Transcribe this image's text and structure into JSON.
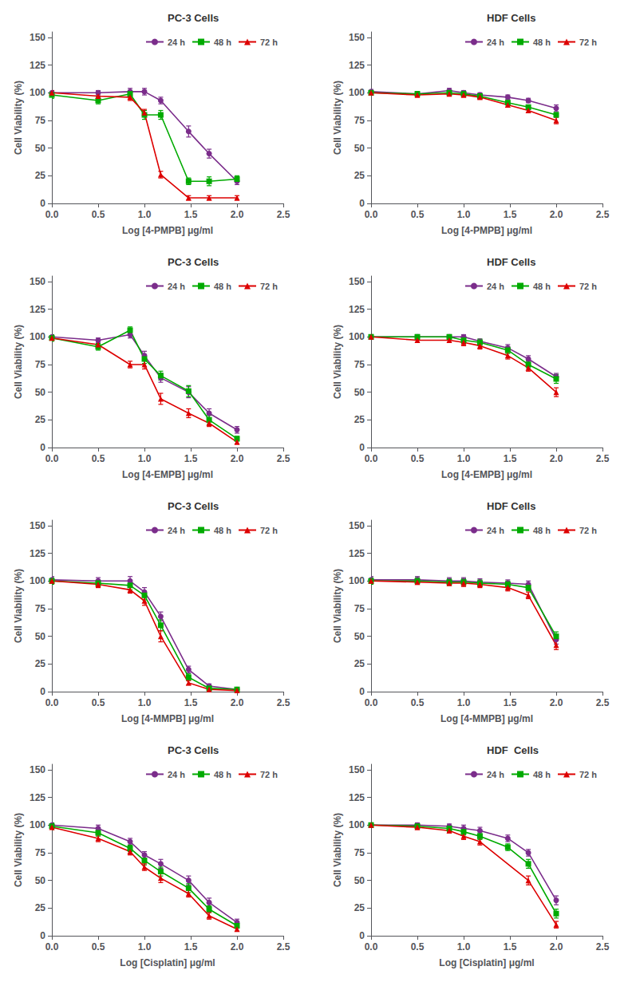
{
  "chart_data": [
    {
      "type": "line",
      "title": "PC-3 Cells",
      "xlabel": "Log [4-PMPB] μg/ml",
      "ylabel": "Cell Viability (%)",
      "xlim": [
        0.0,
        2.5
      ],
      "xticks": [
        {
          "value": 0.0,
          "label": "0.0"
        },
        0.5,
        {
          "value": 1.0,
          "label": "1.0"
        },
        1.5,
        {
          "value": 2.0,
          "label": "2.0"
        },
        2.5
      ],
      "ylim": [
        0,
        155
      ],
      "yticks": [
        0,
        25,
        50,
        75,
        100,
        125,
        150
      ],
      "legend": "upper right",
      "grid": false,
      "series": [
        {
          "name": "24 h",
          "color": "#7B2D8B",
          "marker": "circle",
          "x": [
            0.0,
            0.5,
            0.845,
            1.0,
            1.176,
            1.477,
            1.699,
            2.0
          ],
          "values": [
            100,
            100,
            101,
            101,
            93,
            65,
            45,
            20
          ],
          "yerr": [
            2,
            2,
            3,
            3,
            3,
            5,
            4,
            3
          ]
        },
        {
          "name": "48 h",
          "color": "#00AA00",
          "marker": "square",
          "x": [
            0.0,
            0.5,
            0.845,
            1.0,
            1.176,
            1.477,
            1.699,
            2.0
          ],
          "values": [
            98,
            93,
            99,
            80,
            80,
            20,
            20,
            22
          ],
          "yerr": [
            3,
            3,
            3,
            4,
            4,
            3,
            4,
            3
          ]
        },
        {
          "name": "72 h",
          "color": "#DD0000",
          "marker": "triangle",
          "x": [
            0.0,
            0.5,
            0.845,
            1.0,
            1.176,
            1.477,
            1.699,
            2.0
          ],
          "values": [
            100,
            97,
            96,
            82,
            26,
            5,
            5,
            5
          ],
          "yerr": [
            2,
            2,
            3,
            3,
            3,
            2,
            2,
            2
          ]
        }
      ]
    },
    {
      "type": "line",
      "title": "HDF Cells",
      "xlabel": "Log [4-PMPB] μg/ml",
      "ylabel": "Cell Viability (%)",
      "xlim": [
        0.0,
        2.5
      ],
      "xticks": [
        {
          "value": 0.0,
          "label": "0.0"
        },
        0.5,
        {
          "value": 1.0,
          "label": "1.0"
        },
        1.5,
        {
          "value": 2.0,
          "label": "2.0"
        },
        2.5
      ],
      "ylim": [
        0,
        155
      ],
      "yticks": [
        0,
        25,
        50,
        75,
        100,
        125,
        150
      ],
      "legend": "upper right",
      "grid": false,
      "series": [
        {
          "name": "24 h",
          "color": "#7B2D8B",
          "marker": "circle",
          "x": [
            0.0,
            0.5,
            0.845,
            1.0,
            1.176,
            1.477,
            1.699,
            2.0
          ],
          "values": [
            101,
            99,
            102,
            100,
            98,
            96,
            93,
            86
          ],
          "yerr": [
            2,
            2,
            2,
            2,
            2,
            2,
            2,
            3
          ]
        },
        {
          "name": "48 h",
          "color": "#00AA00",
          "marker": "square",
          "x": [
            0.0,
            0.5,
            0.845,
            1.0,
            1.176,
            1.477,
            1.699,
            2.0
          ],
          "values": [
            100,
            99,
            100,
            99,
            97,
            91,
            87,
            80
          ],
          "yerr": [
            2,
            2,
            2,
            2,
            2,
            2,
            2,
            2
          ]
        },
        {
          "name": "72 h",
          "color": "#DD0000",
          "marker": "triangle",
          "x": [
            0.0,
            0.5,
            0.845,
            1.0,
            1.176,
            1.477,
            1.699,
            2.0
          ],
          "values": [
            100,
            98,
            99,
            98,
            96,
            89,
            84,
            75
          ],
          "yerr": [
            2,
            2,
            2,
            2,
            2,
            2,
            2,
            3
          ]
        }
      ]
    },
    {
      "type": "line",
      "title": "PC-3 Cells",
      "xlabel": "Log [4-EMPB] μg/ml",
      "ylabel": "Cell Viability (%)",
      "xlim": [
        0.0,
        2.5
      ],
      "xticks": [
        {
          "value": 0.0,
          "label": "0.0"
        },
        0.5,
        {
          "value": 1.0,
          "label": "1.0"
        },
        1.5,
        {
          "value": 2.0,
          "label": "2.0"
        },
        2.5
      ],
      "ylim": [
        0,
        155
      ],
      "yticks": [
        0,
        25,
        50,
        75,
        100,
        125,
        150
      ],
      "legend": "upper right",
      "grid": false,
      "series": [
        {
          "name": "24 h",
          "color": "#7B2D8B",
          "marker": "circle",
          "x": [
            0.0,
            0.5,
            0.845,
            1.0,
            1.176,
            1.477,
            1.699,
            2.0
          ],
          "values": [
            100,
            97,
            102,
            83,
            63,
            50,
            31,
            16
          ],
          "yerr": [
            2,
            2,
            3,
            4,
            4,
            5,
            4,
            3
          ]
        },
        {
          "name": "48 h",
          "color": "#00AA00",
          "marker": "square",
          "x": [
            0.0,
            0.5,
            0.845,
            1.0,
            1.176,
            1.477,
            1.699,
            2.0
          ],
          "values": [
            99,
            91,
            106,
            80,
            65,
            51,
            25,
            8
          ],
          "yerr": [
            3,
            3,
            3,
            4,
            4,
            5,
            4,
            2
          ]
        },
        {
          "name": "72 h",
          "color": "#DD0000",
          "marker": "triangle",
          "x": [
            0.0,
            0.5,
            0.845,
            1.0,
            1.176,
            1.477,
            1.699,
            2.0
          ],
          "values": [
            99,
            93,
            75,
            75,
            44,
            31,
            22,
            5
          ],
          "yerr": [
            2,
            3,
            3,
            4,
            5,
            4,
            3,
            2
          ]
        }
      ]
    },
    {
      "type": "line",
      "title": "HDF Cells",
      "xlabel": "Log [4-EMPB] μg/ml",
      "ylabel": "Cell Viability (%)",
      "xlim": [
        0.0,
        2.5
      ],
      "xticks": [
        {
          "value": 0.0,
          "label": "0.0"
        },
        0.5,
        {
          "value": 1.0,
          "label": "1.0"
        },
        1.5,
        {
          "value": 2.0,
          "label": "2.0"
        },
        2.5
      ],
      "ylim": [
        0,
        155
      ],
      "yticks": [
        0,
        25,
        50,
        75,
        100,
        125,
        150
      ],
      "legend": "upper right",
      "grid": false,
      "series": [
        {
          "name": "24 h",
          "color": "#7B2D8B",
          "marker": "circle",
          "x": [
            0.0,
            0.5,
            0.845,
            1.0,
            1.176,
            1.477,
            1.699,
            2.0
          ],
          "values": [
            100,
            100,
            100,
            100,
            96,
            90,
            80,
            64
          ],
          "yerr": [
            2,
            2,
            2,
            2,
            2,
            3,
            3,
            3
          ]
        },
        {
          "name": "48 h",
          "color": "#00AA00",
          "marker": "square",
          "x": [
            0.0,
            0.5,
            0.845,
            1.0,
            1.176,
            1.477,
            1.699,
            2.0
          ],
          "values": [
            100,
            100,
            100,
            97,
            95,
            88,
            75,
            62
          ],
          "yerr": [
            2,
            2,
            2,
            3,
            3,
            3,
            3,
            4
          ]
        },
        {
          "name": "72 h",
          "color": "#DD0000",
          "marker": "triangle",
          "x": [
            0.0,
            0.5,
            0.845,
            1.0,
            1.176,
            1.477,
            1.699,
            2.0
          ],
          "values": [
            100,
            97,
            97,
            95,
            92,
            83,
            72,
            50
          ],
          "yerr": [
            2,
            2,
            2,
            3,
            3,
            3,
            3,
            4
          ]
        }
      ]
    },
    {
      "type": "line",
      "title": "PC-3 Cells",
      "xlabel": "Log [4-MMPB] μg/ml",
      "ylabel": "Cell Viability (%)",
      "xlim": [
        0.0,
        2.5
      ],
      "xticks": [
        {
          "value": 0.0,
          "label": "0.0"
        },
        0.5,
        {
          "value": 1.0,
          "label": "1.0"
        },
        1.5,
        {
          "value": 2.0,
          "label": "2.0"
        },
        2.5
      ],
      "ylim": [
        0,
        155
      ],
      "yticks": [
        0,
        25,
        50,
        75,
        100,
        125,
        150
      ],
      "legend": "upper right",
      "grid": false,
      "series": [
        {
          "name": "24 h",
          "color": "#7B2D8B",
          "marker": "circle",
          "x": [
            0.0,
            0.5,
            0.845,
            1.0,
            1.176,
            1.477,
            1.699,
            2.0
          ],
          "values": [
            101,
            100,
            100,
            90,
            68,
            20,
            5,
            2
          ],
          "yerr": [
            3,
            3,
            4,
            4,
            4,
            3,
            2,
            1
          ]
        },
        {
          "name": "48 h",
          "color": "#00AA00",
          "marker": "square",
          "x": [
            0.0,
            0.5,
            0.845,
            1.0,
            1.176,
            1.477,
            1.699,
            2.0
          ],
          "values": [
            100,
            98,
            96,
            87,
            60,
            13,
            3,
            2
          ],
          "yerr": [
            3,
            3,
            4,
            4,
            5,
            3,
            2,
            1
          ]
        },
        {
          "name": "72 h",
          "color": "#DD0000",
          "marker": "triangle",
          "x": [
            0.0,
            0.5,
            0.845,
            1.0,
            1.176,
            1.477,
            1.699,
            2.0
          ],
          "values": [
            100,
            97,
            92,
            82,
            50,
            8,
            2,
            1
          ],
          "yerr": [
            2,
            3,
            3,
            4,
            5,
            2,
            1,
            1
          ]
        }
      ]
    },
    {
      "type": "line",
      "title": "HDF Cells",
      "xlabel": "Log [4-MMPB] μg/ml",
      "ylabel": "Cell Viability (%)",
      "xlim": [
        0.0,
        2.5
      ],
      "xticks": [
        {
          "value": 0.0,
          "label": "0.0"
        },
        0.5,
        {
          "value": 1.0,
          "label": "1.0"
        },
        1.5,
        {
          "value": 2.0,
          "label": "2.0"
        },
        2.5
      ],
      "ylim": [
        0,
        155
      ],
      "yticks": [
        0,
        25,
        50,
        75,
        100,
        125,
        150
      ],
      "legend": "upper right",
      "grid": false,
      "series": [
        {
          "name": "24 h",
          "color": "#7B2D8B",
          "marker": "circle",
          "x": [
            0.0,
            0.5,
            0.845,
            1.0,
            1.176,
            1.477,
            1.699,
            2.0
          ],
          "values": [
            101,
            101,
            100,
            100,
            99,
            98,
            97,
            47
          ],
          "yerr": [
            3,
            3,
            3,
            3,
            3,
            3,
            3,
            4
          ]
        },
        {
          "name": "48 h",
          "color": "#00AA00",
          "marker": "square",
          "x": [
            0.0,
            0.5,
            0.845,
            1.0,
            1.176,
            1.477,
            1.699,
            2.0
          ],
          "values": [
            100,
            100,
            99,
            99,
            98,
            97,
            94,
            50
          ],
          "yerr": [
            3,
            3,
            3,
            3,
            3,
            3,
            3,
            4
          ]
        },
        {
          "name": "72 h",
          "color": "#DD0000",
          "marker": "triangle",
          "x": [
            0.0,
            0.5,
            0.845,
            1.0,
            1.176,
            1.477,
            1.699,
            2.0
          ],
          "values": [
            100,
            99,
            98,
            98,
            97,
            94,
            87,
            42
          ],
          "yerr": [
            2,
            2,
            2,
            3,
            3,
            3,
            3,
            4
          ]
        }
      ]
    },
    {
      "type": "line",
      "title": "PC-3 Cells",
      "xlabel": "Log [Cisplatin] μg/ml",
      "ylabel": "Cell Viability (%)",
      "xlim": [
        0.0,
        2.5
      ],
      "xticks": [
        {
          "value": 0.0,
          "label": "0.0"
        },
        0.5,
        {
          "value": 1.0,
          "label": "1.0"
        },
        1.5,
        {
          "value": 2.0,
          "label": "2.0"
        },
        2.5
      ],
      "ylim": [
        0,
        155
      ],
      "yticks": [
        0,
        25,
        50,
        75,
        100,
        125,
        150
      ],
      "legend": "upper right",
      "grid": false,
      "series": [
        {
          "name": "24 h",
          "color": "#7B2D8B",
          "marker": "circle",
          "x": [
            0.0,
            0.5,
            0.845,
            1.0,
            1.176,
            1.477,
            1.699,
            2.0
          ],
          "values": [
            100,
            97,
            85,
            73,
            65,
            50,
            30,
            12
          ],
          "yerr": [
            2,
            3,
            3,
            3,
            4,
            4,
            4,
            3
          ]
        },
        {
          "name": "48 h",
          "color": "#00AA00",
          "marker": "square",
          "x": [
            0.0,
            0.5,
            0.845,
            1.0,
            1.176,
            1.477,
            1.699,
            2.0
          ],
          "values": [
            99,
            93,
            79,
            68,
            58,
            43,
            24,
            9
          ],
          "yerr": [
            3,
            3,
            3,
            4,
            4,
            4,
            3,
            2
          ]
        },
        {
          "name": "72 h",
          "color": "#DD0000",
          "marker": "triangle",
          "x": [
            0.0,
            0.5,
            0.845,
            1.0,
            1.176,
            1.477,
            1.699,
            2.0
          ],
          "values": [
            98,
            88,
            76,
            62,
            52,
            38,
            18,
            6
          ],
          "yerr": [
            2,
            3,
            3,
            3,
            4,
            3,
            3,
            2
          ]
        }
      ]
    },
    {
      "type": "line",
      "title": "HDF  Cells",
      "xlabel": "Log [Cisplatin] μg/ml",
      "ylabel": "Cell Viability (%)",
      "xlim": [
        0.0,
        2.5
      ],
      "xticks": [
        {
          "value": 0.0,
          "label": "0.0"
        },
        0.5,
        {
          "value": 1.0,
          "label": "1.0"
        },
        1.5,
        {
          "value": 2.0,
          "label": "2.0"
        },
        2.5
      ],
      "ylim": [
        0,
        155
      ],
      "yticks": [
        0,
        25,
        50,
        75,
        100,
        125,
        150
      ],
      "legend": "upper right",
      "grid": false,
      "series": [
        {
          "name": "24 h",
          "color": "#7B2D8B",
          "marker": "circle",
          "x": [
            0.0,
            0.5,
            0.845,
            1.0,
            1.176,
            1.477,
            1.699,
            2.0
          ],
          "values": [
            100,
            100,
            99,
            97,
            95,
            88,
            75,
            32
          ],
          "yerr": [
            2,
            2,
            2,
            3,
            3,
            3,
            3,
            4
          ]
        },
        {
          "name": "48 h",
          "color": "#00AA00",
          "marker": "square",
          "x": [
            0.0,
            0.5,
            0.845,
            1.0,
            1.176,
            1.477,
            1.699,
            2.0
          ],
          "values": [
            100,
            99,
            97,
            94,
            90,
            80,
            65,
            20
          ],
          "yerr": [
            2,
            2,
            3,
            3,
            3,
            3,
            4,
            4
          ]
        },
        {
          "name": "72 h",
          "color": "#DD0000",
          "marker": "triangle",
          "x": [
            0.0,
            0.5,
            0.845,
            1.0,
            1.176,
            1.699,
            2.0
          ],
          "values": [
            100,
            98,
            95,
            90,
            85,
            50,
            10
          ],
          "yerr": [
            2,
            2,
            2,
            3,
            3,
            4,
            3
          ]
        }
      ]
    }
  ]
}
